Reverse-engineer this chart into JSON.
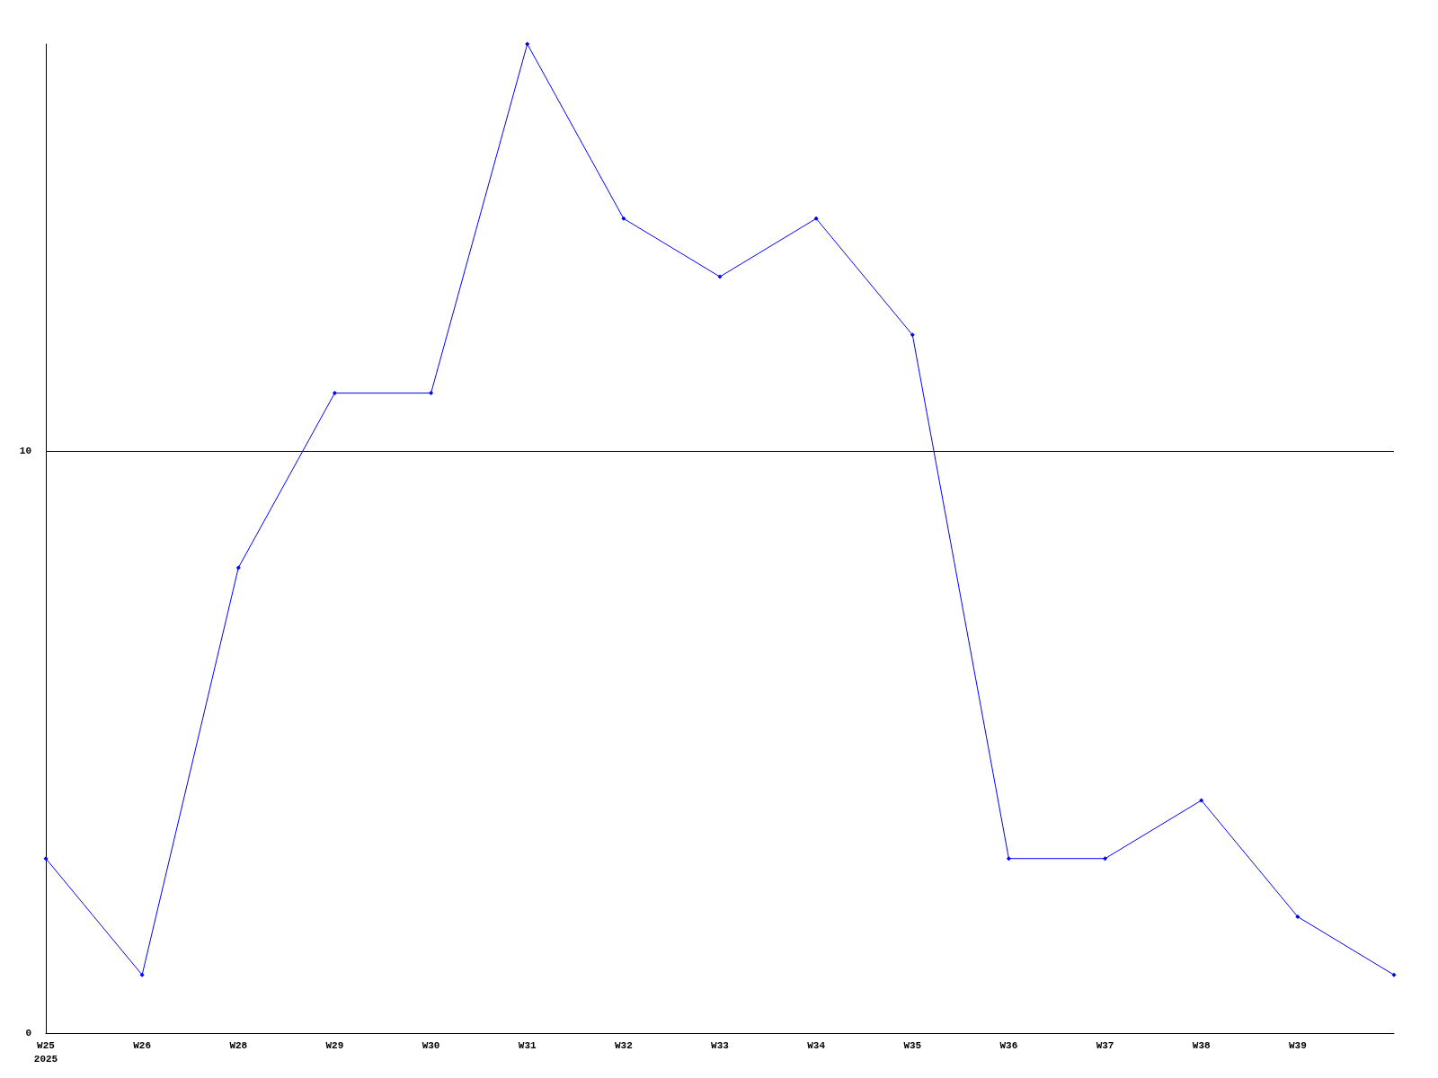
{
  "chart_data": {
    "type": "line",
    "categories": [
      "W25\n2025",
      "W26",
      "W28",
      "W29",
      "W30",
      "W31",
      "W32",
      "W33",
      "W34",
      "W35",
      "W36",
      "W37",
      "W38",
      "W39",
      null
    ],
    "series": [
      {
        "color": "#0000ff",
        "values": [
          3,
          1,
          8,
          11,
          11,
          17,
          14,
          13,
          14,
          12,
          3,
          3,
          4,
          2,
          1
        ]
      }
    ],
    "ylim": [
      0,
      17
    ],
    "yticks": [
      0,
      10
    ],
    "grid": "y",
    "marker": "diamond",
    "line_style": "solid"
  }
}
